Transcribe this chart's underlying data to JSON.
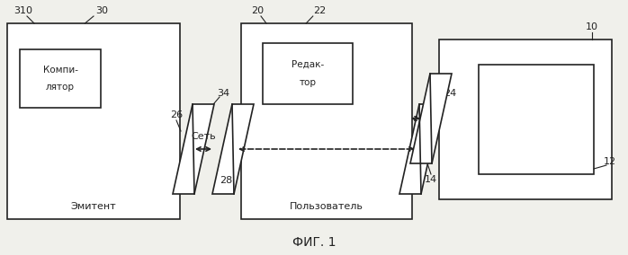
{
  "bg_color": "#f0f0eb",
  "line_color": "#222222",
  "fig_caption": "ФИГ. 1",
  "label310": "310",
  "label30": "30",
  "label34": "34",
  "label26": "26",
  "label28": "28",
  "label20": "20",
  "label22": "22",
  "label24": "24",
  "label10": "10",
  "label12": "12",
  "label14": "14",
  "net_label": "Сеть",
  "emitter_label": "Эмитент",
  "compiler_line1": "Компи-",
  "compiler_line2": "лятор",
  "user_label": "Пользователь",
  "editor_line1": "Редак-",
  "editor_line2": "тор"
}
